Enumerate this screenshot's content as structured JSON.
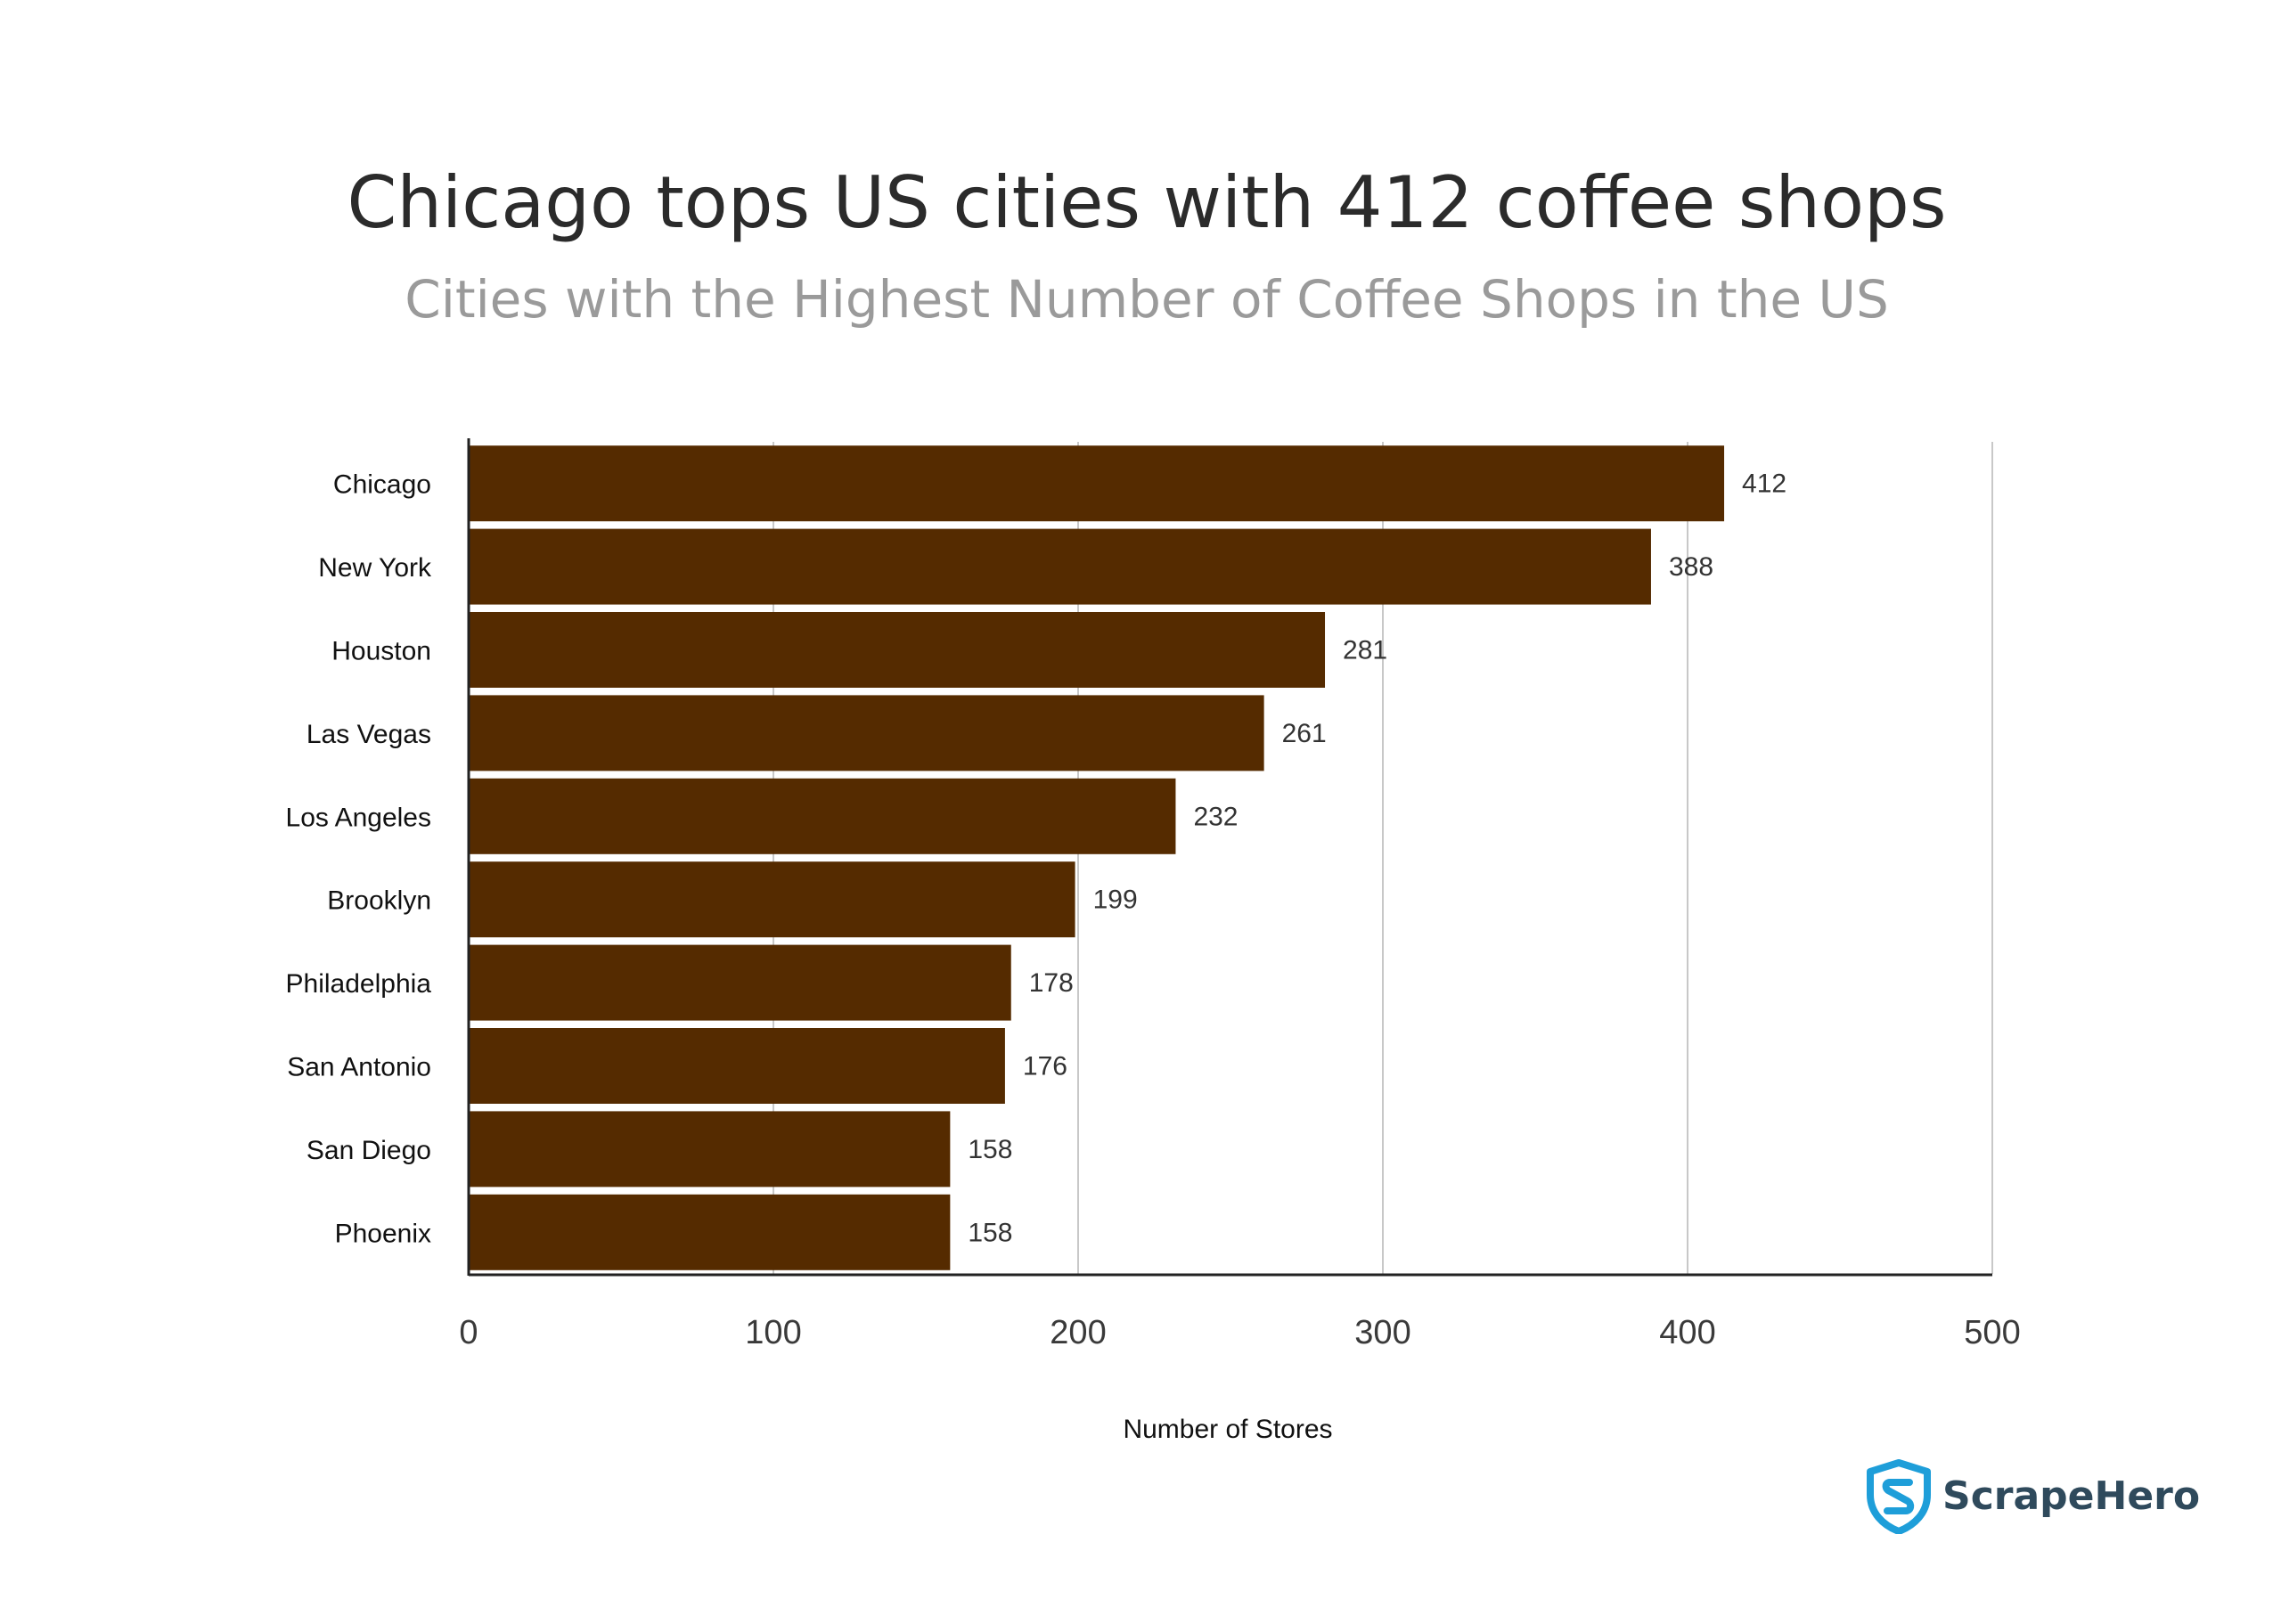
{
  "chart_data": {
    "type": "bar",
    "orientation": "horizontal",
    "title": "Chicago tops US cities with 412 coffee shops",
    "subtitle": "Cities with the Highest Number of Coffee Shops in the US",
    "xlabel": "Number of Stores",
    "ylabel": "",
    "categories": [
      "Chicago",
      "New York",
      "Houston",
      "Las Vegas",
      "Los Angeles",
      "Brooklyn",
      "Philadelphia",
      "San Antonio",
      "San Diego",
      "Phoenix"
    ],
    "values": [
      412,
      388,
      281,
      261,
      232,
      199,
      178,
      176,
      158,
      158
    ],
    "xlim": [
      0,
      500
    ],
    "xticks": [
      "0",
      "100",
      "200",
      "300",
      "400",
      "500"
    ],
    "grid": "vertical",
    "legend": "none",
    "bar_color": "#552b00",
    "grid_color": "#c8c8c8",
    "axis_color": "#222222"
  },
  "brand": {
    "name": "ScrapeHero",
    "color": "#2f4a5c",
    "icon_color": "#1e9ed9",
    "icon": "shield-s-icon"
  }
}
